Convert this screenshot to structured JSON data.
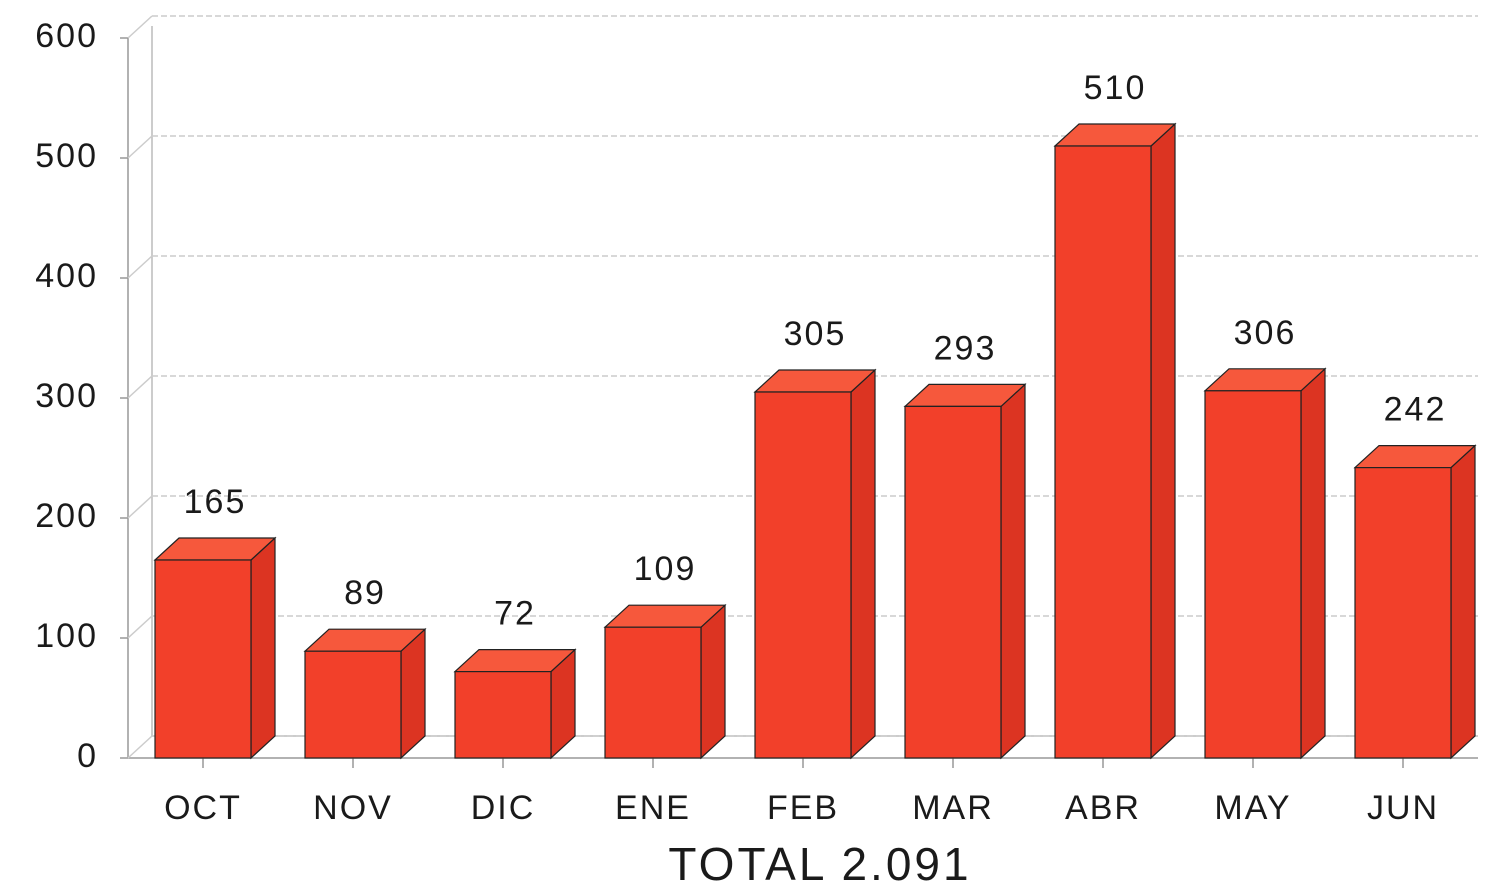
{
  "chart_data": {
    "type": "bar3d",
    "categories": [
      "OCT",
      "NOV",
      "DIC",
      "ENE",
      "FEB",
      "MAR",
      "ABR",
      "MAY",
      "JUN"
    ],
    "values": [
      165,
      89,
      72,
      109,
      305,
      293,
      510,
      306,
      242
    ],
    "color": "#f2402a",
    "ylim": [
      0,
      600
    ],
    "yticks": [
      0,
      100,
      200,
      300,
      400,
      500,
      600
    ],
    "grid": true,
    "xlabel": "TOTAL 2.091"
  }
}
